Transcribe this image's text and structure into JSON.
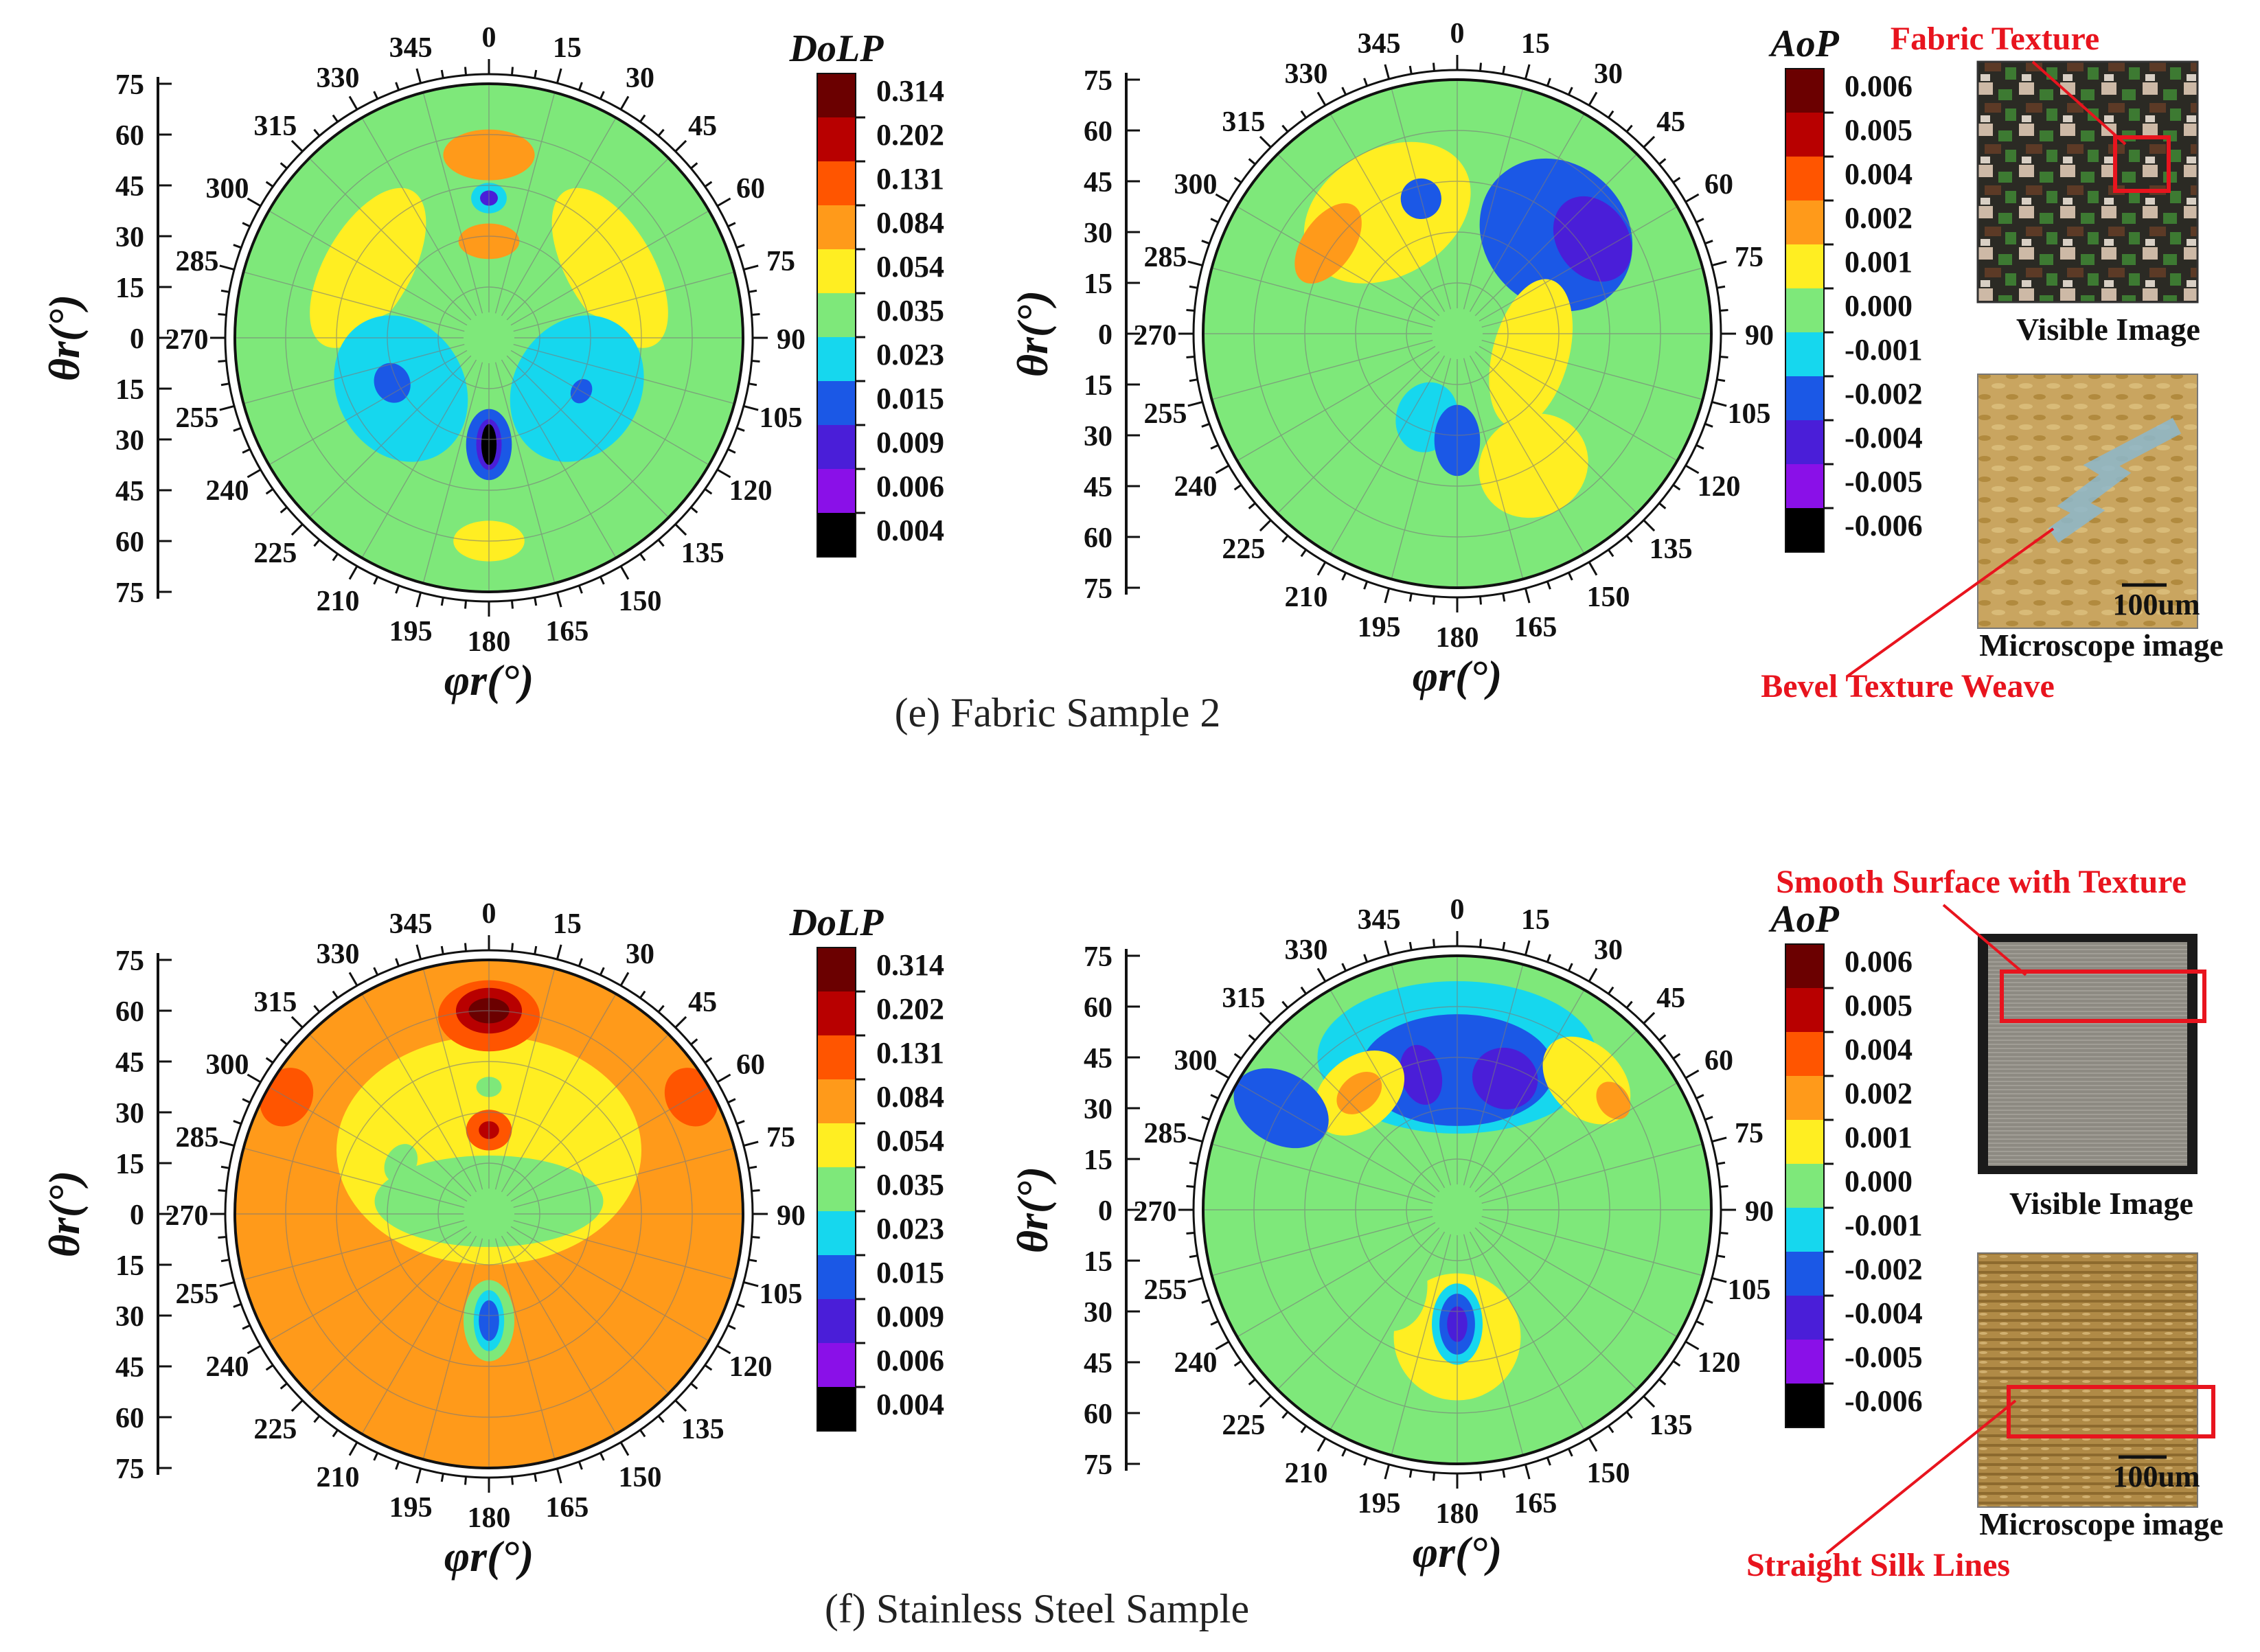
{
  "chart_data": [
    {
      "type": "heatmap",
      "projection": "polar",
      "panel": "e",
      "quantity": "DoLP",
      "colorbar_title": "DoLP",
      "colorbar_ticks": [
        "0.314",
        "0.202",
        "0.131",
        "0.084",
        "0.054",
        "0.035",
        "0.023",
        "0.015",
        "0.009",
        "0.006",
        "0.004"
      ],
      "angular_ticks": [
        "0",
        "15",
        "30",
        "45",
        "60",
        "75",
        "90",
        "105",
        "120",
        "135",
        "150",
        "165",
        "180",
        "195",
        "210",
        "225",
        "240",
        "255",
        "270",
        "285",
        "300",
        "315",
        "330",
        "345"
      ],
      "radial_ticks": [
        "75",
        "60",
        "45",
        "30",
        "15",
        "0",
        "15",
        "30",
        "45",
        "60",
        "75"
      ],
      "ylabel": "θr(°)",
      "xlabel": "φr(°)",
      "background_level": 5,
      "regions": [
        {
          "theta": 0,
          "r": 0.72,
          "rx": 0.18,
          "ry": 0.1,
          "level": 3
        },
        {
          "theta": 0,
          "r": 0.55,
          "rx": 0.07,
          "ry": 0.06,
          "level": 6
        },
        {
          "theta": 0,
          "r": 0.55,
          "rx": 0.035,
          "ry": 0.03,
          "level": 8
        },
        {
          "theta": 0,
          "r": 0.38,
          "rx": 0.12,
          "ry": 0.07,
          "level": 3
        },
        {
          "theta": 60,
          "r": 0.55,
          "rx": 0.35,
          "ry": 0.17,
          "level": 4
        },
        {
          "theta": -60,
          "r": 0.55,
          "rx": 0.35,
          "ry": 0.17,
          "level": 4
        },
        {
          "theta": 0,
          "r": 0.05,
          "rx": 0.45,
          "ry": 0.1,
          "level": 5
        },
        {
          "theta": 240,
          "r": 0.4,
          "rx": 0.3,
          "ry": 0.25,
          "level": 6
        },
        {
          "theta": 120,
          "r": 0.4,
          "rx": 0.3,
          "ry": 0.25,
          "level": 6
        },
        {
          "theta": 245,
          "r": 0.42,
          "rx": 0.08,
          "ry": 0.07,
          "level": 7
        },
        {
          "theta": 120,
          "r": 0.42,
          "rx": 0.05,
          "ry": 0.04,
          "level": 7
        },
        {
          "theta": 180,
          "r": 0.42,
          "rx": 0.09,
          "ry": 0.14,
          "level": 7
        },
        {
          "theta": 180,
          "r": 0.42,
          "rx": 0.05,
          "ry": 0.1,
          "level": 8
        },
        {
          "theta": 180,
          "r": 0.42,
          "rx": 0.03,
          "ry": 0.08,
          "level": 10
        },
        {
          "theta": 180,
          "r": 0.8,
          "rx": 0.14,
          "ry": 0.08,
          "level": 4
        }
      ]
    },
    {
      "type": "heatmap",
      "projection": "polar",
      "panel": "e",
      "quantity": "AoP",
      "colorbar_title": "AoP",
      "colorbar_ticks": [
        "0.006",
        "0.005",
        "0.004",
        "0.002",
        "0.001",
        "0.000",
        "-0.001",
        "-0.002",
        "-0.004",
        "-0.005",
        "-0.006"
      ],
      "angular_ticks": [
        "0",
        "15",
        "30",
        "45",
        "60",
        "75",
        "90",
        "105",
        "120",
        "135",
        "150",
        "165",
        "180",
        "195",
        "210",
        "225",
        "240",
        "255",
        "270",
        "285",
        "300",
        "315",
        "330",
        "345"
      ],
      "radial_ticks": [
        "75",
        "60",
        "45",
        "30",
        "15",
        "0",
        "15",
        "30",
        "45",
        "60",
        "75"
      ],
      "ylabel": "θr(°)",
      "xlabel": "φr(°)",
      "background_level": 5,
      "regions": [
        {
          "theta": 330,
          "r": 0.55,
          "rx": 0.35,
          "ry": 0.25,
          "level": 4
        },
        {
          "theta": 305,
          "r": 0.62,
          "rx": 0.18,
          "ry": 0.1,
          "level": 3
        },
        {
          "theta": 45,
          "r": 0.55,
          "rx": 0.32,
          "ry": 0.28,
          "level": 7
        },
        {
          "theta": 55,
          "r": 0.65,
          "rx": 0.18,
          "ry": 0.14,
          "level": 8
        },
        {
          "theta": 345,
          "r": 0.55,
          "rx": 0.08,
          "ry": 0.08,
          "level": 7
        },
        {
          "theta": 105,
          "r": 0.3,
          "rx": 0.3,
          "ry": 0.15,
          "level": 4
        },
        {
          "theta": 200,
          "r": 0.35,
          "rx": 0.12,
          "ry": 0.14,
          "level": 6
        },
        {
          "theta": 180,
          "r": 0.42,
          "rx": 0.09,
          "ry": 0.14,
          "level": 7
        },
        {
          "theta": 150,
          "r": 0.6,
          "rx": 0.22,
          "ry": 0.2,
          "level": 4
        },
        {
          "theta": 250,
          "r": 0.55,
          "rx": 0.35,
          "ry": 0.2,
          "level": 5
        }
      ]
    },
    {
      "type": "heatmap",
      "projection": "polar",
      "panel": "f",
      "quantity": "DoLP",
      "colorbar_title": "DoLP",
      "colorbar_ticks": [
        "0.314",
        "0.202",
        "0.131",
        "0.084",
        "0.054",
        "0.035",
        "0.023",
        "0.015",
        "0.009",
        "0.006",
        "0.004"
      ],
      "angular_ticks": [
        "0",
        "15",
        "30",
        "45",
        "60",
        "75",
        "90",
        "105",
        "120",
        "135",
        "150",
        "165",
        "180",
        "195",
        "210",
        "225",
        "240",
        "255",
        "270",
        "285",
        "300",
        "315",
        "330",
        "345"
      ],
      "radial_ticks": [
        "75",
        "60",
        "45",
        "30",
        "15",
        "0",
        "15",
        "30",
        "45",
        "60",
        "75"
      ],
      "ylabel": "θr(°)",
      "xlabel": "φr(°)",
      "background_level": 3,
      "regions": [
        {
          "theta": 0,
          "r": 0.25,
          "rx": 0.6,
          "ry": 0.45,
          "level": 4
        },
        {
          "theta": 0,
          "r": 0.05,
          "rx": 0.45,
          "ry": 0.18,
          "level": 5
        },
        {
          "theta": 0,
          "r": 0.78,
          "rx": 0.2,
          "ry": 0.14,
          "level": 2
        },
        {
          "theta": 0,
          "r": 0.8,
          "rx": 0.13,
          "ry": 0.09,
          "level": 1
        },
        {
          "theta": 0,
          "r": 0.8,
          "rx": 0.08,
          "ry": 0.05,
          "level": 0
        },
        {
          "theta": 0,
          "r": 0.5,
          "rx": 0.05,
          "ry": 0.04,
          "level": 5
        },
        {
          "theta": 0,
          "r": 0.33,
          "rx": 0.09,
          "ry": 0.08,
          "level": 2
        },
        {
          "theta": 0,
          "r": 0.33,
          "rx": 0.04,
          "ry": 0.035,
          "level": 1
        },
        {
          "theta": 300,
          "r": 0.4,
          "rx": 0.08,
          "ry": 0.06,
          "level": 5
        },
        {
          "theta": 180,
          "r": 0.42,
          "rx": 0.1,
          "ry": 0.16,
          "level": 5
        },
        {
          "theta": 180,
          "r": 0.42,
          "rx": 0.06,
          "ry": 0.12,
          "level": 6
        },
        {
          "theta": 180,
          "r": 0.42,
          "rx": 0.04,
          "ry": 0.08,
          "level": 7
        },
        {
          "theta": 60,
          "r": 0.92,
          "rx": 0.12,
          "ry": 0.1,
          "level": 2
        },
        {
          "theta": 300,
          "r": 0.92,
          "rx": 0.12,
          "ry": 0.1,
          "level": 2
        }
      ]
    },
    {
      "type": "heatmap",
      "projection": "polar",
      "panel": "f",
      "quantity": "AoP",
      "colorbar_title": "AoP",
      "colorbar_ticks": [
        "0.006",
        "0.005",
        "0.004",
        "0.002",
        "0.001",
        "0.000",
        "-0.001",
        "-0.002",
        "-0.004",
        "-0.005",
        "-0.006"
      ],
      "angular_ticks": [
        "0",
        "15",
        "30",
        "45",
        "60",
        "75",
        "90",
        "105",
        "120",
        "135",
        "150",
        "165",
        "180",
        "195",
        "210",
        "225",
        "240",
        "255",
        "270",
        "285",
        "300",
        "315",
        "330",
        "345"
      ],
      "radial_ticks": [
        "75",
        "60",
        "45",
        "30",
        "15",
        "0",
        "15",
        "30",
        "45",
        "60",
        "75"
      ],
      "ylabel": "θr(°)",
      "xlabel": "φr(°)",
      "background_level": 5,
      "regions": [
        {
          "theta": 0,
          "r": 0.6,
          "rx": 0.55,
          "ry": 0.3,
          "level": 6
        },
        {
          "theta": 0,
          "r": 0.55,
          "rx": 0.38,
          "ry": 0.22,
          "level": 7
        },
        {
          "theta": 20,
          "r": 0.55,
          "rx": 0.13,
          "ry": 0.12,
          "level": 8
        },
        {
          "theta": 345,
          "r": 0.55,
          "rx": 0.08,
          "ry": 0.12,
          "level": 8
        },
        {
          "theta": 320,
          "r": 0.6,
          "rx": 0.2,
          "ry": 0.14,
          "level": 4
        },
        {
          "theta": 320,
          "r": 0.6,
          "rx": 0.1,
          "ry": 0.07,
          "level": 3
        },
        {
          "theta": 45,
          "r": 0.72,
          "rx": 0.2,
          "ry": 0.14,
          "level": 4
        },
        {
          "theta": 55,
          "r": 0.75,
          "rx": 0.08,
          "ry": 0.06,
          "level": 3
        },
        {
          "theta": 300,
          "r": 0.8,
          "rx": 0.14,
          "ry": 0.2,
          "level": 7
        },
        {
          "theta": 180,
          "r": 0.5,
          "rx": 0.25,
          "ry": 0.25,
          "level": 4
        },
        {
          "theta": 180,
          "r": 0.45,
          "rx": 0.1,
          "ry": 0.16,
          "level": 6
        },
        {
          "theta": 180,
          "r": 0.45,
          "rx": 0.07,
          "ry": 0.12,
          "level": 7
        },
        {
          "theta": 180,
          "r": 0.45,
          "rx": 0.04,
          "ry": 0.07,
          "level": 8
        },
        {
          "theta": 240,
          "r": 0.4,
          "rx": 0.3,
          "ry": 0.2,
          "level": 5
        }
      ]
    }
  ],
  "colormap": [
    "#6b0000",
    "#b80000",
    "#ff5500",
    "#ff9a1a",
    "#ffee22",
    "#7ee87a",
    "#16d7ee",
    "#1b58e6",
    "#4a1ed8",
    "#8a10e8",
    "#000000"
  ],
  "panels": [
    {
      "caption": "(e) Fabric Sample 2",
      "visible_label": "Visible Image",
      "microscope_label": "Microscope image",
      "scale_label": "100um",
      "top_annotation": "Fabric Texture",
      "bottom_annotation": "Bevel Texture Weave"
    },
    {
      "caption": "(f) Stainless Steel Sample",
      "visible_label": "Visible Image",
      "microscope_label": "Microscope image",
      "scale_label": "100um",
      "top_annotation": "Smooth Surface with Texture",
      "bottom_annotation": "Straight Silk Lines"
    }
  ],
  "colors": {
    "annotation": "#e8141e",
    "ink": "#111111"
  }
}
